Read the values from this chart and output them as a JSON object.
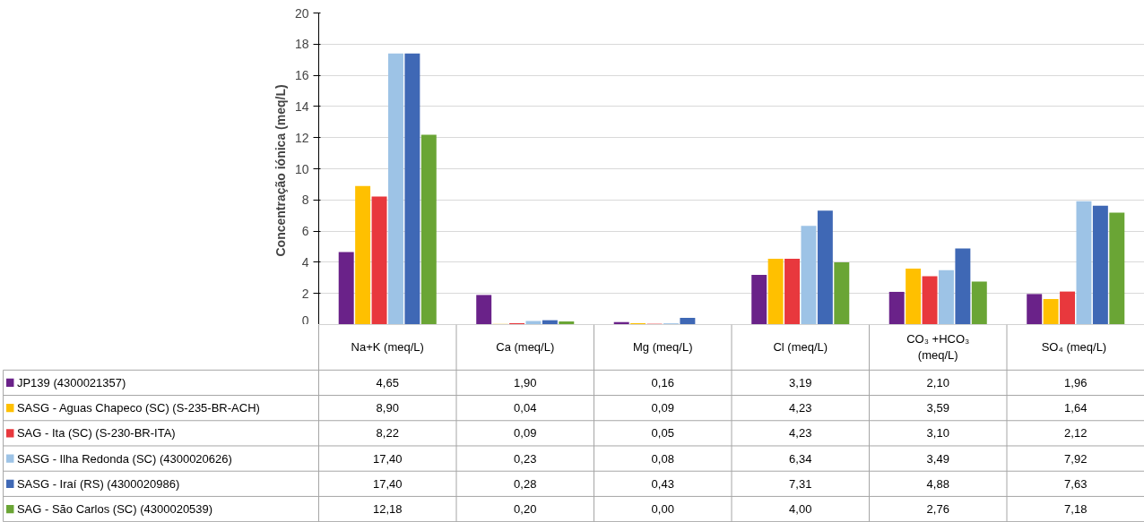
{
  "chart_data": {
    "type": "bar",
    "ylabel": "Concentração iónica  (meq/L)",
    "categories": [
      "Na+K (meq/L)",
      "Ca (meq/L)",
      "Mg (meq/L)",
      "Cl (meq/L)",
      "CO₃ +HCO₃ (meq/L)",
      "SO₄  (meq/L)"
    ],
    "series": [
      {
        "name": "JP139  (4300021357)",
        "color": "#6a2289",
        "values": [
          4.65,
          1.9,
          0.16,
          3.19,
          2.1,
          1.96
        ],
        "value_labels": [
          "4,65",
          "1,90",
          "0,16",
          "3,19",
          "2,10",
          "1,96"
        ]
      },
      {
        "name": "SASG - Aguas Chapeco (SC) (S-235-BR-ACH)",
        "color": "#ffc000",
        "values": [
          8.9,
          0.04,
          0.09,
          4.23,
          3.59,
          1.64
        ],
        "value_labels": [
          "8,90",
          "0,04",
          "0,09",
          "4,23",
          "3,59",
          "1,64"
        ]
      },
      {
        "name": "SAG - Ita (SC) (S-230-BR-ITA)",
        "color": "#e8383d",
        "values": [
          8.22,
          0.09,
          0.05,
          4.23,
          3.1,
          2.12
        ],
        "value_labels": [
          "8,22",
          "0,09",
          "0,05",
          "4,23",
          "3,10",
          "2,12"
        ]
      },
      {
        "name": "SASG - Ilha Redonda (SC) (4300020626)",
        "color": "#9dc3e6",
        "values": [
          17.4,
          0.23,
          0.08,
          6.34,
          3.49,
          7.92
        ],
        "value_labels": [
          "17,40",
          "0,23",
          "0,08",
          "6,34",
          "3,49",
          "7,92"
        ]
      },
      {
        "name": "SASG - Iraí (RS) (4300020986)",
        "color": "#3f68b5",
        "values": [
          17.4,
          0.28,
          0.43,
          7.31,
          4.88,
          7.63
        ],
        "value_labels": [
          "17,40",
          "0,28",
          "0,43",
          "7,31",
          "4,88",
          "7,63"
        ]
      },
      {
        "name": "SAG - São Carlos (SC) (4300020539)",
        "color": "#6aa535",
        "values": [
          12.18,
          0.2,
          0.0,
          4.0,
          2.76,
          7.18
        ],
        "value_labels": [
          "12,18",
          "0,20",
          "0,00",
          "4,00",
          "2,76",
          "7,18"
        ]
      }
    ],
    "ylim": [
      0,
      20
    ],
    "yticks": [
      0,
      2,
      4,
      6,
      8,
      10,
      12,
      14,
      16,
      18,
      20
    ],
    "grid": "y",
    "legend": "bottom"
  }
}
